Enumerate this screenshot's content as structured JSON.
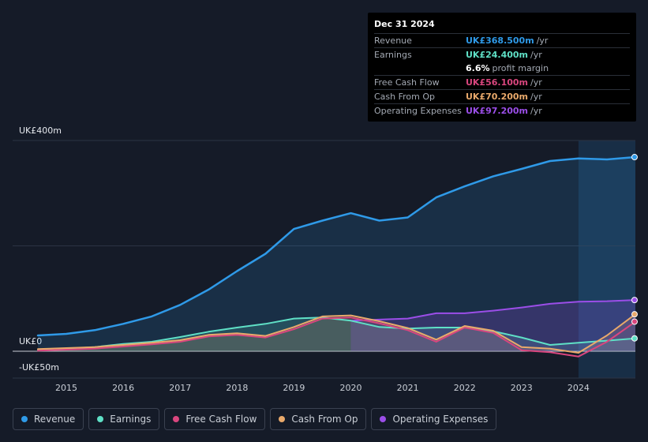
{
  "tooltip": {
    "date": "Dec 31 2024",
    "rows": [
      {
        "label": "Revenue",
        "value": "UK£368.500m",
        "unit": "/yr",
        "color": "#2f9ae8"
      },
      {
        "label": "Earnings",
        "value": "UK£24.400m",
        "unit": "/yr",
        "color": "#5fe0c6"
      },
      {
        "label": "",
        "value": "6.6%",
        "unit": "profit margin",
        "color": "#ffffff"
      },
      {
        "label": "Free Cash Flow",
        "value": "UK£56.100m",
        "unit": "/yr",
        "color": "#d9467e"
      },
      {
        "label": "Cash From Op",
        "value": "UK£70.200m",
        "unit": "/yr",
        "color": "#e9a96b"
      },
      {
        "label": "Operating Expenses",
        "value": "UK£97.200m",
        "unit": "/yr",
        "color": "#9b4ee8"
      }
    ]
  },
  "legend": [
    {
      "label": "Revenue",
      "color": "#2f9ae8"
    },
    {
      "label": "Earnings",
      "color": "#5fe0c6"
    },
    {
      "label": "Free Cash Flow",
      "color": "#d9467e"
    },
    {
      "label": "Cash From Op",
      "color": "#e9a96b"
    },
    {
      "label": "Operating Expenses",
      "color": "#9b4ee8"
    }
  ],
  "chart_data": {
    "type": "line",
    "title": "",
    "xlabel": "",
    "ylabel": "",
    "y_tick_labels": [
      "UK£400m",
      "UK£0",
      "-UK£50m"
    ],
    "ylim": [
      -50,
      400
    ],
    "xlim": [
      2014.5,
      2025.0
    ],
    "x_ticks": [
      "2015",
      "2016",
      "2017",
      "2018",
      "2019",
      "2020",
      "2021",
      "2022",
      "2023",
      "2024"
    ],
    "highlight_start": 2024.0,
    "series": [
      {
        "name": "Revenue",
        "color": "#2f9ae8",
        "fill": true,
        "points": [
          [
            2014.5,
            30
          ],
          [
            2015.0,
            33
          ],
          [
            2015.5,
            40
          ],
          [
            2016.0,
            52
          ],
          [
            2016.5,
            66
          ],
          [
            2017.0,
            88
          ],
          [
            2017.5,
            117
          ],
          [
            2018.0,
            152
          ],
          [
            2018.5,
            185
          ],
          [
            2019.0,
            232
          ],
          [
            2019.5,
            248
          ],
          [
            2020.0,
            262
          ],
          [
            2020.5,
            248
          ],
          [
            2021.0,
            254
          ],
          [
            2021.5,
            292
          ],
          [
            2022.0,
            313
          ],
          [
            2022.5,
            332
          ],
          [
            2023.0,
            346
          ],
          [
            2023.5,
            361
          ],
          [
            2024.0,
            366
          ],
          [
            2024.5,
            364
          ],
          [
            2025.0,
            368.5
          ]
        ]
      },
      {
        "name": "Earnings",
        "color": "#5fe0c6",
        "fill": true,
        "points": [
          [
            2014.5,
            3
          ],
          [
            2015.0,
            5
          ],
          [
            2015.5,
            8
          ],
          [
            2016.0,
            14
          ],
          [
            2016.5,
            18
          ],
          [
            2017.0,
            27
          ],
          [
            2017.5,
            37
          ],
          [
            2018.0,
            45
          ],
          [
            2018.5,
            52
          ],
          [
            2019.0,
            62
          ],
          [
            2019.5,
            64
          ],
          [
            2020.0,
            58
          ],
          [
            2020.5,
            46
          ],
          [
            2021.0,
            43
          ],
          [
            2021.5,
            45
          ],
          [
            2022.0,
            45
          ],
          [
            2022.5,
            38
          ],
          [
            2023.0,
            26
          ],
          [
            2023.5,
            12
          ],
          [
            2024.0,
            16
          ],
          [
            2024.5,
            20
          ],
          [
            2025.0,
            24.4
          ]
        ]
      },
      {
        "name": "Free Cash Flow",
        "color": "#d9467e",
        "fill": false,
        "points": [
          [
            2014.5,
            1
          ],
          [
            2015.0,
            3
          ],
          [
            2015.5,
            5
          ],
          [
            2016.0,
            9
          ],
          [
            2016.5,
            13
          ],
          [
            2017.0,
            18
          ],
          [
            2017.5,
            28
          ],
          [
            2018.0,
            31
          ],
          [
            2018.5,
            26
          ],
          [
            2019.0,
            42
          ],
          [
            2019.5,
            62
          ],
          [
            2020.0,
            64
          ],
          [
            2020.5,
            53
          ],
          [
            2021.0,
            40
          ],
          [
            2021.5,
            18
          ],
          [
            2022.0,
            45
          ],
          [
            2022.5,
            35
          ],
          [
            2023.0,
            2
          ],
          [
            2023.5,
            -2
          ],
          [
            2024.0,
            -10
          ],
          [
            2024.5,
            18
          ],
          [
            2025.0,
            56.1
          ]
        ]
      },
      {
        "name": "Cash From Op",
        "color": "#e9a96b",
        "fill": true,
        "points": [
          [
            2014.5,
            4
          ],
          [
            2015.0,
            6
          ],
          [
            2015.5,
            8
          ],
          [
            2016.0,
            12
          ],
          [
            2016.5,
            16
          ],
          [
            2017.0,
            21
          ],
          [
            2017.5,
            31
          ],
          [
            2018.0,
            34
          ],
          [
            2018.5,
            29
          ],
          [
            2019.0,
            46
          ],
          [
            2019.5,
            66
          ],
          [
            2020.0,
            68
          ],
          [
            2020.5,
            57
          ],
          [
            2021.0,
            44
          ],
          [
            2021.5,
            22
          ],
          [
            2022.0,
            48
          ],
          [
            2022.5,
            39
          ],
          [
            2023.0,
            8
          ],
          [
            2023.5,
            5
          ],
          [
            2024.0,
            -3
          ],
          [
            2024.5,
            30
          ],
          [
            2025.0,
            70.2
          ]
        ]
      },
      {
        "name": "Operating Expenses",
        "color": "#9b4ee8",
        "fill": true,
        "points": [
          [
            2020.0,
            58
          ],
          [
            2020.5,
            60
          ],
          [
            2021.0,
            62
          ],
          [
            2021.5,
            72
          ],
          [
            2022.0,
            72
          ],
          [
            2022.5,
            77
          ],
          [
            2023.0,
            83
          ],
          [
            2023.5,
            90
          ],
          [
            2024.0,
            94
          ],
          [
            2024.5,
            95
          ],
          [
            2025.0,
            97.2
          ]
        ]
      }
    ]
  }
}
